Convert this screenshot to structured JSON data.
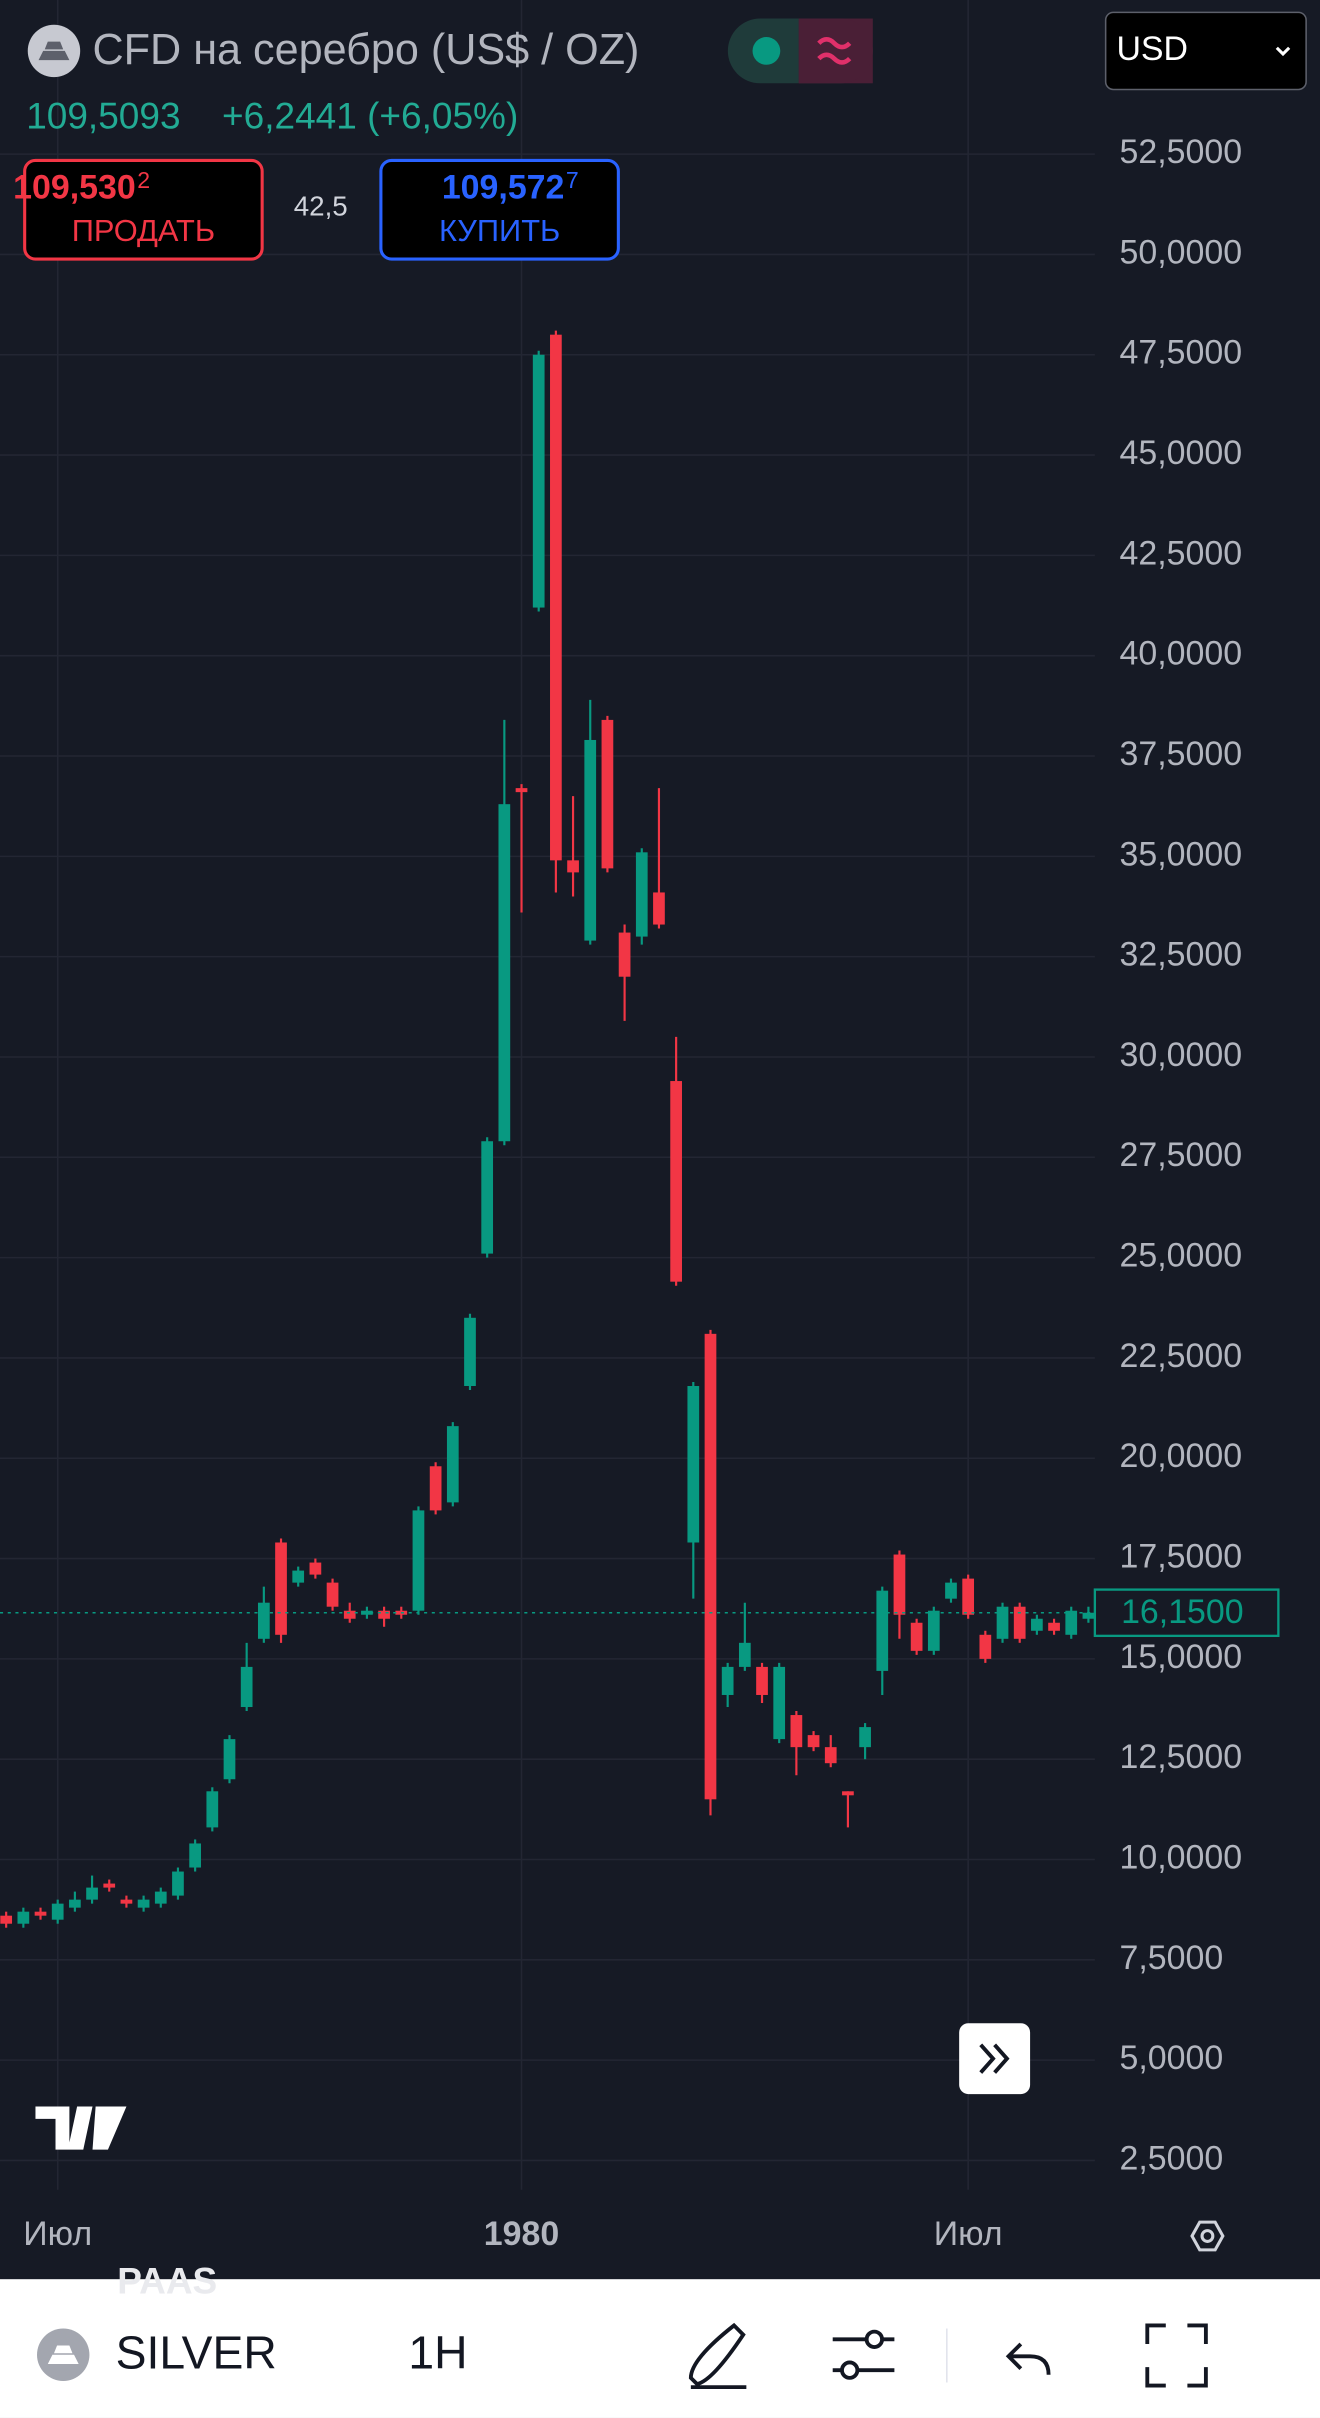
{
  "header": {
    "title": "CFD на серебро (US$ / OZ)",
    "price": "109,5093",
    "change": "+6,2441 (+6,05%)",
    "sell": {
      "price": "109,530",
      "fraction": "2",
      "label": "ПРОДАТЬ"
    },
    "spread": "42,5",
    "buy": {
      "price": "109,572",
      "fraction": "7",
      "label": "КУПИТЬ"
    },
    "currency": "USD"
  },
  "toolbar": {
    "symbol": "SILVER",
    "interval": "1H",
    "faded_symbol": "PAAS"
  },
  "chart_data": {
    "type": "candlestick",
    "categories": [
      null,
      null,
      null,
      "Июл",
      null,
      null,
      null,
      null,
      null,
      null,
      null,
      null,
      null,
      null,
      null,
      null,
      null,
      null,
      null,
      null,
      null,
      null,
      null,
      null,
      null,
      null,
      null,
      null,
      null,
      null,
      "1980",
      null,
      null,
      null,
      null,
      null,
      null,
      null,
      null,
      null,
      null,
      null,
      null,
      null,
      null,
      null,
      null,
      null,
      null,
      null,
      null,
      null,
      null,
      null,
      null,
      null,
      "Июл",
      null,
      null,
      null,
      null,
      null,
      null,
      null
    ],
    "up_color": "#089981",
    "down_color": "#f23645",
    "open": [
      8.6,
      8.4,
      8.7,
      8.5,
      8.8,
      9.0,
      9.4,
      9.0,
      8.8,
      8.9,
      9.1,
      9.8,
      10.8,
      12.0,
      13.8,
      15.5,
      17.9,
      16.9,
      17.4,
      16.9,
      16.2,
      16.1,
      16.2,
      16.2,
      16.2,
      19.8,
      18.9,
      21.8,
      25.1,
      27.9,
      36.7,
      41.2,
      48.0,
      34.9,
      32.9,
      38.4,
      33.1,
      33.0,
      34.1,
      29.4,
      17.9,
      23.1,
      14.1,
      14.8,
      14.8,
      13.0,
      13.6,
      13.1,
      12.8,
      11.7,
      12.8,
      14.7,
      17.6,
      15.9,
      15.2,
      16.5,
      17.0,
      15.6,
      15.5,
      16.3,
      15.7,
      15.9,
      15.6,
      16.0
    ],
    "high": [
      8.7,
      8.8,
      8.8,
      9.0,
      9.2,
      9.6,
      9.5,
      9.1,
      9.1,
      9.3,
      9.8,
      10.5,
      11.8,
      13.1,
      15.4,
      16.8,
      18.0,
      17.3,
      17.5,
      17.0,
      16.4,
      16.3,
      16.3,
      16.3,
      18.8,
      19.9,
      20.9,
      23.6,
      28.0,
      38.4,
      36.8,
      47.6,
      48.1,
      36.5,
      38.9,
      38.5,
      33.3,
      35.2,
      36.7,
      30.5,
      21.9,
      23.2,
      14.9,
      16.4,
      14.9,
      14.9,
      13.7,
      13.2,
      13.1,
      11.7,
      13.4,
      16.8,
      17.7,
      16.0,
      16.3,
      17.0,
      17.1,
      15.7,
      16.4,
      16.4,
      16.1,
      16.0,
      16.3,
      16.3
    ],
    "low": [
      8.3,
      8.3,
      8.5,
      8.4,
      8.7,
      8.9,
      9.2,
      8.8,
      8.7,
      8.8,
      9.0,
      9.7,
      10.7,
      11.9,
      13.7,
      15.4,
      15.4,
      16.8,
      17.0,
      16.2,
      15.9,
      16.0,
      15.8,
      16.0,
      16.1,
      18.6,
      18.8,
      21.7,
      25.0,
      27.8,
      33.6,
      41.1,
      34.1,
      34.0,
      32.8,
      34.6,
      30.9,
      32.8,
      33.2,
      24.3,
      16.5,
      11.1,
      13.8,
      14.7,
      13.9,
      12.9,
      12.1,
      12.7,
      12.3,
      10.8,
      12.5,
      14.1,
      15.5,
      15.1,
      15.1,
      16.4,
      16.0,
      14.9,
      15.4,
      15.4,
      15.6,
      15.6,
      15.5,
      15.9
    ],
    "close": [
      8.4,
      8.7,
      8.6,
      8.9,
      9.0,
      9.3,
      9.3,
      8.9,
      9.0,
      9.2,
      9.7,
      10.4,
      11.7,
      13.0,
      14.8,
      16.4,
      15.6,
      17.2,
      17.1,
      16.3,
      16.0,
      16.2,
      16.0,
      16.1,
      18.7,
      18.7,
      20.8,
      23.5,
      27.9,
      36.3,
      36.6,
      47.5,
      34.9,
      34.6,
      37.9,
      34.7,
      32.0,
      35.1,
      33.3,
      24.4,
      21.8,
      11.5,
      14.8,
      15.4,
      14.1,
      14.8,
      12.8,
      12.8,
      12.4,
      11.6,
      13.3,
      16.7,
      16.1,
      15.2,
      16.2,
      16.9,
      16.1,
      15.0,
      16.3,
      15.5,
      16.0,
      15.7,
      16.2,
      16.15
    ],
    "last_price": {
      "value": 16.15,
      "label": "16,1500"
    },
    "ylim": [
      1.77,
      56.34
    ],
    "yticks": [
      {
        "value": 2.5,
        "label": "2,5000"
      },
      {
        "value": 5,
        "label": "5,0000"
      },
      {
        "value": 7.5,
        "label": "7,5000"
      },
      {
        "value": 10,
        "label": "10,0000"
      },
      {
        "value": 12.5,
        "label": "12,5000"
      },
      {
        "value": 15,
        "label": "15,0000"
      },
      {
        "value": 17.5,
        "label": "17,5000"
      },
      {
        "value": 20,
        "label": "20,0000"
      },
      {
        "value": 22.5,
        "label": "22,5000"
      },
      {
        "value": 25,
        "label": "25,0000"
      },
      {
        "value": 27.5,
        "label": "27,5000"
      },
      {
        "value": 30,
        "label": "30,0000"
      },
      {
        "value": 32.5,
        "label": "32,5000"
      },
      {
        "value": 35,
        "label": "35,0000"
      },
      {
        "value": 37.5,
        "label": "37,5000"
      },
      {
        "value": 40,
        "label": "40,0000"
      },
      {
        "value": 42.5,
        "label": "42,5000"
      },
      {
        "value": 45,
        "label": "45,0000"
      },
      {
        "value": 47.5,
        "label": "47,5000"
      },
      {
        "value": 50,
        "label": "50,0000"
      },
      {
        "value": 52.5,
        "label": "52,5000"
      }
    ],
    "grid": true
  }
}
